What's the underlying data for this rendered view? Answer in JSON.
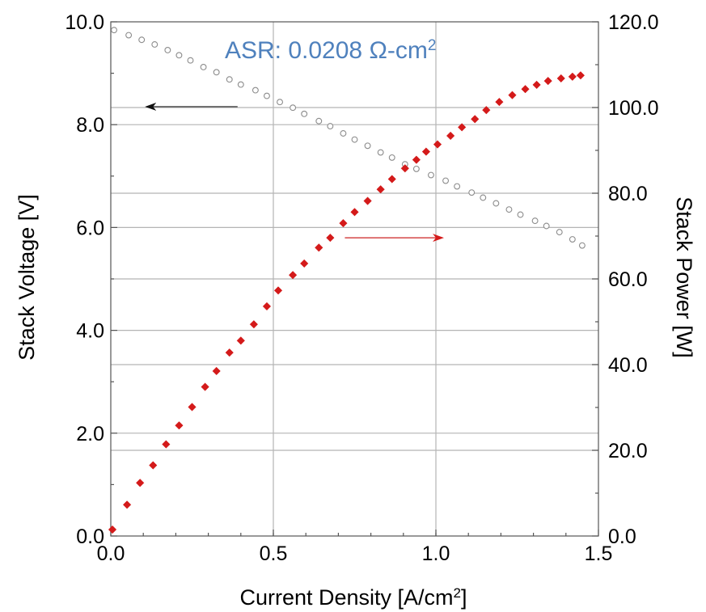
{
  "chart_data": {
    "type": "scatter",
    "annotation": {
      "prefix": "ASR: 0.0208 Ω-cm",
      "superscript": "2",
      "color": "#4f81bd"
    },
    "x_axis": {
      "label_prefix": "Current Density [A/cm",
      "label_superscript": "2",
      "label_suffix": "]",
      "range": [
        0,
        1.5
      ],
      "ticks": [
        0,
        0.5,
        1.0,
        1.5
      ],
      "tick_labels": [
        "0.0",
        "0.5",
        "1.0",
        "1.5"
      ]
    },
    "y_left_axis": {
      "label": "Stack Voltage [V]",
      "range": [
        0,
        10
      ],
      "ticks": [
        0,
        2,
        4,
        6,
        8,
        10
      ],
      "tick_labels": [
        "0.0",
        "2.0",
        "4.0",
        "6.0",
        "8.0",
        "10.0"
      ]
    },
    "y_right_axis": {
      "label": "Stack Power [W]",
      "range": [
        0,
        120
      ],
      "ticks": [
        0,
        20,
        40,
        60,
        80,
        100,
        120
      ],
      "tick_labels": [
        "0.0",
        "20.0",
        "40.0",
        "60.0",
        "80.0",
        "100.0",
        "120.0"
      ]
    },
    "grid": true,
    "series": [
      {
        "axis": "left",
        "marker": "open-circle",
        "color": "#8c8c8c",
        "points": [
          [
            0.01,
            9.84
          ],
          [
            0.055,
            9.74
          ],
          [
            0.095,
            9.65
          ],
          [
            0.135,
            9.56
          ],
          [
            0.175,
            9.45
          ],
          [
            0.21,
            9.35
          ],
          [
            0.245,
            9.25
          ],
          [
            0.285,
            9.12
          ],
          [
            0.325,
            9.02
          ],
          [
            0.365,
            8.88
          ],
          [
            0.4,
            8.78
          ],
          [
            0.445,
            8.67
          ],
          [
            0.48,
            8.56
          ],
          [
            0.52,
            8.44
          ],
          [
            0.56,
            8.33
          ],
          [
            0.595,
            8.21
          ],
          [
            0.64,
            8.07
          ],
          [
            0.675,
            7.97
          ],
          [
            0.715,
            7.83
          ],
          [
            0.75,
            7.71
          ],
          [
            0.79,
            7.59
          ],
          [
            0.83,
            7.46
          ],
          [
            0.865,
            7.36
          ],
          [
            0.905,
            7.23
          ],
          [
            0.94,
            7.14
          ],
          [
            0.985,
            7.02
          ],
          [
            1.03,
            6.91
          ],
          [
            1.065,
            6.8
          ],
          [
            1.11,
            6.68
          ],
          [
            1.145,
            6.58
          ],
          [
            1.185,
            6.47
          ],
          [
            1.225,
            6.35
          ],
          [
            1.26,
            6.25
          ],
          [
            1.305,
            6.13
          ],
          [
            1.34,
            6.03
          ],
          [
            1.38,
            5.91
          ],
          [
            1.42,
            5.77
          ],
          [
            1.45,
            5.65
          ]
        ]
      },
      {
        "axis": "right",
        "marker": "filled-diamond",
        "color": "#d41a1a",
        "points": [
          [
            0.005,
            1.5
          ],
          [
            0.05,
            7.3
          ],
          [
            0.09,
            12.4
          ],
          [
            0.13,
            16.5
          ],
          [
            0.17,
            21.4
          ],
          [
            0.21,
            25.8
          ],
          [
            0.25,
            30.1
          ],
          [
            0.29,
            34.8
          ],
          [
            0.325,
            38.5
          ],
          [
            0.365,
            42.8
          ],
          [
            0.4,
            45.6
          ],
          [
            0.44,
            49.4
          ],
          [
            0.48,
            53.6
          ],
          [
            0.515,
            57.3
          ],
          [
            0.56,
            60.9
          ],
          [
            0.595,
            63.6
          ],
          [
            0.64,
            67.3
          ],
          [
            0.675,
            69.6
          ],
          [
            0.715,
            73.0
          ],
          [
            0.75,
            75.6
          ],
          [
            0.79,
            78.2
          ],
          [
            0.83,
            80.9
          ],
          [
            0.865,
            83.3
          ],
          [
            0.905,
            85.8
          ],
          [
            0.94,
            87.8
          ],
          [
            0.97,
            89.7
          ],
          [
            1.005,
            91.4
          ],
          [
            1.045,
            93.4
          ],
          [
            1.08,
            95.4
          ],
          [
            1.12,
            97.3
          ],
          [
            1.155,
            99.4
          ],
          [
            1.195,
            101.3
          ],
          [
            1.235,
            102.9
          ],
          [
            1.275,
            104.3
          ],
          [
            1.31,
            105.3
          ],
          [
            1.345,
            106.2
          ],
          [
            1.385,
            106.8
          ],
          [
            1.42,
            107.2
          ],
          [
            1.445,
            107.5
          ]
        ]
      }
    ],
    "arrows": [
      {
        "color": "#222222",
        "from": [
          0.39,
          8.35
        ],
        "to": [
          0.11,
          8.35
        ]
      },
      {
        "color": "#cc2222",
        "from": [
          0.72,
          5.8
        ],
        "to": [
          1.02,
          5.8
        ]
      }
    ]
  }
}
